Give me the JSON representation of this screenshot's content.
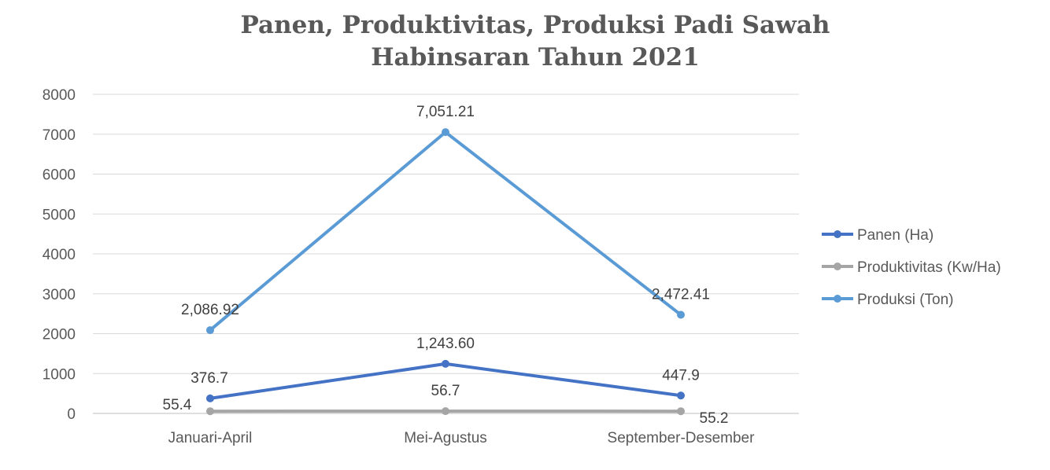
{
  "chart_data": {
    "type": "line",
    "title_line1": "Panen, Produktivitas, Produksi Padi Sawah",
    "title_line2": "Habinsaran Tahun 2021",
    "categories": [
      "Januari-April",
      "Mei-Agustus",
      "September-Desember"
    ],
    "ylim": [
      0,
      8000
    ],
    "yticks": [
      "0",
      "1000",
      "2000",
      "3000",
      "4000",
      "5000",
      "6000",
      "7000",
      "8000"
    ],
    "grid": true,
    "legend_position": "right",
    "series": [
      {
        "name": "Panen (Ha)",
        "color": "#4472C4",
        "values": [
          376.7,
          1243.6,
          447.9
        ],
        "labels": [
          "376.7",
          "1,243.60",
          "447.9"
        ]
      },
      {
        "name": "Produktivitas (Kw/Ha)",
        "color": "#A5A5A5",
        "values": [
          55.4,
          56.7,
          55.2
        ],
        "labels": [
          "55.4",
          "56.7",
          "55.2"
        ]
      },
      {
        "name": "Produksi (Ton)",
        "color": "#5B9BD5",
        "values": [
          2086.92,
          7051.21,
          2472.41
        ],
        "labels": [
          "2,086.92",
          "7,051.21",
          "2,472.41"
        ]
      }
    ]
  }
}
